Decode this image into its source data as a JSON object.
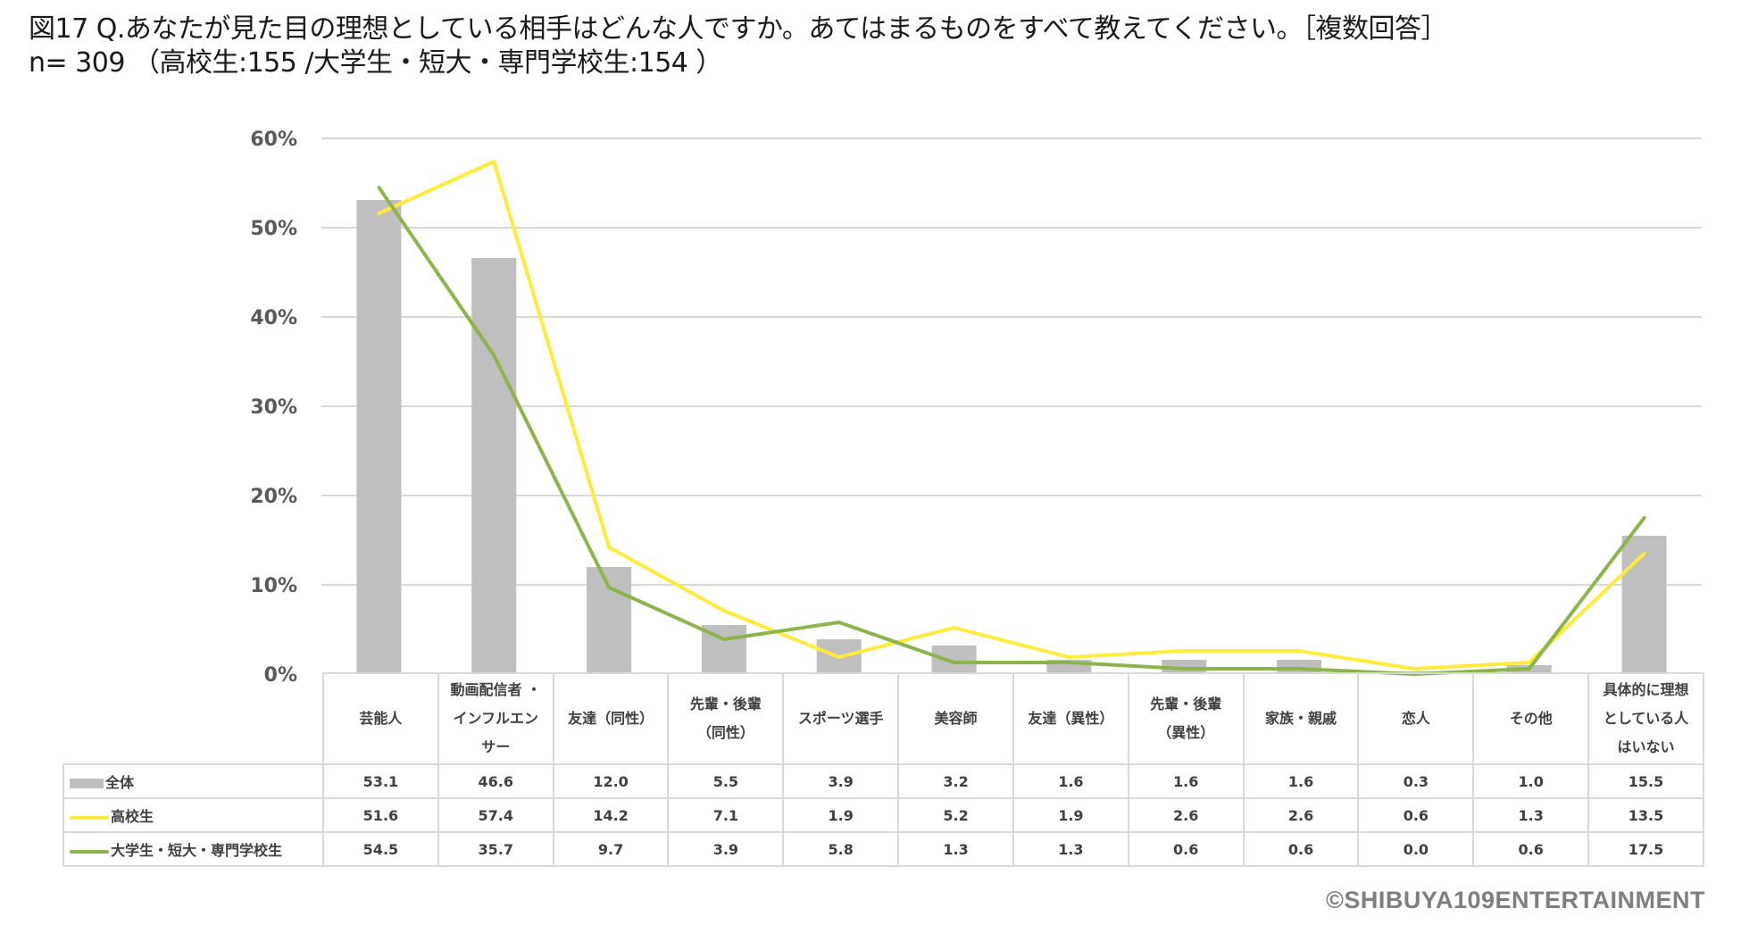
{
  "header": {
    "title_line1": "図17 Q.あなたが見た目の理想としている相手はどんな人ですか。あてはまるものをすべて教えてください。［複数回答］",
    "title_line2": "n= 309 （高校生:155 /大学生・短大・専門学校生:154 ）"
  },
  "colors": {
    "bar_total": "#bfbfbf",
    "line_highschool": "#ffeb3b",
    "line_university": "#8bb54a",
    "grid": "#d9d9d9",
    "axis_text": "#595959",
    "credit": "#7f7f7f"
  },
  "chart_data": {
    "type": "bar",
    "title": "あなたが見た目の理想としている相手はどんな人ですか。あてはまるものをすべて教えてください。［複数回答］",
    "subtitle": "n= 309 （高校生:155 /大学生・短大・専門学校生:154 ）",
    "xlabel": "",
    "ylabel": "",
    "ylim": [
      0,
      60
    ],
    "yticks": [
      "0%",
      "10%",
      "20%",
      "30%",
      "40%",
      "50%",
      "60%"
    ],
    "grid": true,
    "legend_position": "table-left",
    "categories": [
      "芸能人",
      "動画配信者・インフルエンサー",
      "友達（同性）",
      "先輩・後輩（同性）",
      "スポーツ選手",
      "美容師",
      "友達（異性）",
      "先輩・後輩（異性）",
      "家族・親戚",
      "恋人",
      "その他",
      "具体的に理想としている人はいない"
    ],
    "category_labels_display": [
      [
        "芸能人"
      ],
      [
        "動画配信者 ・",
        "インフルエン",
        "サー"
      ],
      [
        "友達（同性）"
      ],
      [
        "先輩・後輩",
        "（同性）"
      ],
      [
        "スポーツ選手"
      ],
      [
        "美容師"
      ],
      [
        "友達（異性）"
      ],
      [
        "先輩・後輩",
        "（異性）"
      ],
      [
        "家族・親戚"
      ],
      [
        "恋人"
      ],
      [
        "その他"
      ],
      [
        "具体的に理想",
        "としている人",
        "はいない"
      ]
    ],
    "series": [
      {
        "name": "全体",
        "type": "bar",
        "color": "#bfbfbf",
        "values": [
          53.1,
          46.6,
          12.0,
          5.5,
          3.9,
          3.2,
          1.6,
          1.6,
          1.6,
          0.3,
          1.0,
          15.5
        ],
        "labels": [
          "53.1",
          "46.6",
          "12.0",
          "5.5",
          "3.9",
          "3.2",
          "1.6",
          "1.6",
          "1.6",
          "0.3",
          "1.0",
          "15.5"
        ]
      },
      {
        "name": "高校生",
        "type": "line",
        "color": "#ffeb3b",
        "values": [
          51.6,
          57.4,
          14.2,
          7.1,
          1.9,
          5.2,
          1.9,
          2.6,
          2.6,
          0.6,
          1.3,
          13.5
        ],
        "labels": [
          "51.6",
          "57.4",
          "14.2",
          "7.1",
          "1.9",
          "5.2",
          "1.9",
          "2.6",
          "2.6",
          "0.6",
          "1.3",
          "13.5"
        ]
      },
      {
        "name": "大学生・短大・専門学校生",
        "type": "line",
        "color": "#8bb54a",
        "values": [
          54.5,
          35.7,
          9.7,
          3.9,
          5.8,
          1.3,
          1.3,
          0.6,
          0.6,
          0.0,
          0.6,
          17.5
        ],
        "labels": [
          "54.5",
          "35.7",
          "9.7",
          "3.9",
          "5.8",
          "1.3",
          "1.3",
          "0.6",
          "0.6",
          "0.0",
          "0.6",
          "17.5"
        ]
      }
    ]
  },
  "footer": {
    "credit": "©SHIBUYA109ENTERTAINMENT"
  }
}
